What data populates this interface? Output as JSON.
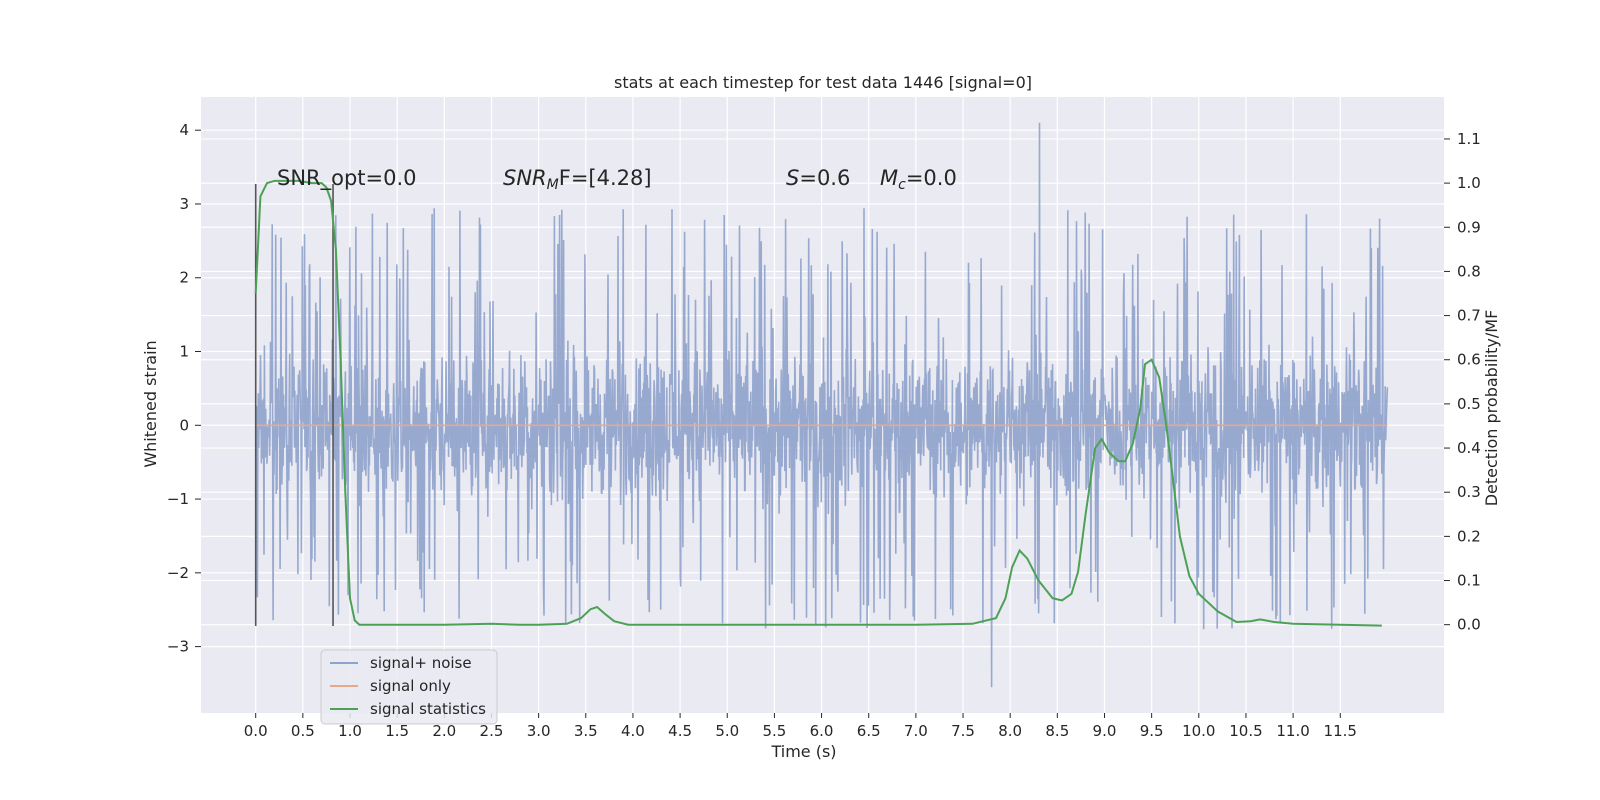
{
  "chart_data": {
    "type": "line",
    "title": "stats at each timestep for test data 1446 [signal=0]",
    "xlabel": "Time (s)",
    "ylabel": "Whitened strain",
    "y2label": "Detection probability/MF",
    "xlim": [
      -0.58,
      12.6
    ],
    "ylim": [
      -3.9,
      4.45
    ],
    "y2lim": [
      -0.2,
      1.195
    ],
    "xticks": [
      0.0,
      0.5,
      1.0,
      1.5,
      2.0,
      2.5,
      3.0,
      3.5,
      4.0,
      4.5,
      5.0,
      5.5,
      6.0,
      6.5,
      7.0,
      7.5,
      8.0,
      8.5,
      9.0,
      9.5,
      10.0,
      10.5,
      11.0,
      11.5
    ],
    "xtick_labels": [
      "0.0",
      "0.5",
      "1.0",
      "1.5",
      "2.0",
      "2.5",
      "3.0",
      "3.5",
      "4.0",
      "4.5",
      "5.0",
      "5.5",
      "6.0",
      "6.5",
      "7.0",
      "7.5",
      "8.0",
      "8.5",
      "9.0",
      "9.5",
      "10.0",
      "10.5",
      "11.0",
      "11.5"
    ],
    "yticks": [
      -3,
      -2,
      -1,
      0,
      1,
      2,
      3,
      4
    ],
    "ytick_labels": [
      "−3",
      "−2",
      "−1",
      "0",
      "1",
      "2",
      "3",
      "4"
    ],
    "y2ticks": [
      0.0,
      0.1,
      0.2,
      0.3,
      0.4,
      0.5,
      0.6,
      0.7,
      0.8,
      0.9,
      1.0,
      1.1
    ],
    "y2tick_labels": [
      "0.0",
      "0.1",
      "0.2",
      "0.3",
      "0.4",
      "0.5",
      "0.6",
      "0.7",
      "0.8",
      "0.9",
      "1.0",
      "1.1"
    ],
    "grid": true,
    "legend_placement": "lower-left",
    "annotations": {
      "snr_opt": "SNR_opt=0.0",
      "snr_mf_main": "SNR",
      "snr_mf_sub": "M",
      "snr_mf_rest": "F=[4.28]",
      "s_main": "S",
      "s_rest": "=0.6",
      "mc_main": "M",
      "mc_sub": "c",
      "mc_rest": "=0.0"
    },
    "markers": {
      "window_lines_x": [
        0.0,
        0.82
      ],
      "window_lines_yrange": [
        -2.72,
        3.27
      ]
    },
    "series": [
      {
        "name": "signal+ noise",
        "color": "#8fa2cc",
        "axis": "left",
        "x_range": [
          0.0,
          12.0
        ],
        "noise_core_range": [
          -1.45,
          1.45
        ],
        "noise_spike_range": [
          -3.55,
          4.1
        ]
      },
      {
        "name": "signal only",
        "color": "#e8a88a",
        "axis": "left",
        "x": [
          0.0,
          12.0
        ],
        "y": [
          0.0,
          0.0
        ]
      },
      {
        "name": "signal statistics",
        "color": "#4ca157",
        "axis": "right",
        "x": [
          0.0,
          0.05,
          0.12,
          0.2,
          0.3,
          0.45,
          0.6,
          0.7,
          0.75,
          0.8,
          0.85,
          0.9,
          0.95,
          1.0,
          1.05,
          1.1,
          1.2,
          1.5,
          2.0,
          2.5,
          2.8,
          3.0,
          3.3,
          3.45,
          3.55,
          3.62,
          3.7,
          3.8,
          3.95,
          4.2,
          5.0,
          6.0,
          7.0,
          7.6,
          7.85,
          7.95,
          8.02,
          8.1,
          8.18,
          8.3,
          8.45,
          8.55,
          8.65,
          8.72,
          8.8,
          8.9,
          8.97,
          9.05,
          9.15,
          9.22,
          9.3,
          9.38,
          9.43,
          9.5,
          9.58,
          9.65,
          9.72,
          9.8,
          9.9,
          10.0,
          10.2,
          10.4,
          10.55,
          10.65,
          10.8,
          11.0,
          11.5,
          11.94
        ],
        "y": [
          0.75,
          0.97,
          1.0,
          1.005,
          1.005,
          1.005,
          1.0,
          1.0,
          0.99,
          0.96,
          0.85,
          0.6,
          0.3,
          0.06,
          0.01,
          0.0,
          0.0,
          0.0,
          0.0,
          0.002,
          0.0,
          0.0,
          0.002,
          0.015,
          0.035,
          0.04,
          0.025,
          0.008,
          0.0,
          0.0,
          0.0,
          0.0,
          0.0,
          0.002,
          0.015,
          0.06,
          0.13,
          0.168,
          0.15,
          0.1,
          0.06,
          0.055,
          0.07,
          0.12,
          0.25,
          0.4,
          0.42,
          0.39,
          0.37,
          0.37,
          0.41,
          0.49,
          0.59,
          0.6,
          0.56,
          0.46,
          0.34,
          0.2,
          0.11,
          0.07,
          0.03,
          0.006,
          0.008,
          0.012,
          0.006,
          0.002,
          0.0,
          -0.002
        ]
      }
    ]
  }
}
